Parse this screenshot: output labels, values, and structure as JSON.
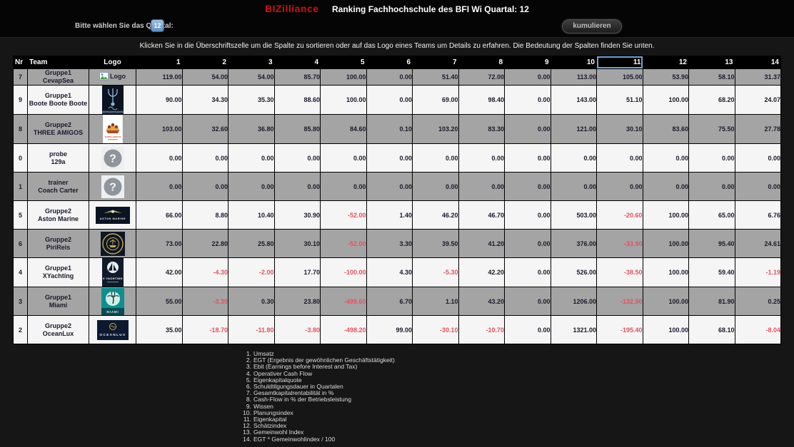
{
  "header": {
    "brand": "BIZilliance",
    "title": "Ranking Fachhochschule des BFI Wi Quartal: 12",
    "quartal_label": "Bitte wählen Sie das Quartal:",
    "quartal_value": "12",
    "kumulieren_button": "kumulieren"
  },
  "instruction": "Klicken Sie in die Überschriftszelle um die Spalte zu sortieren oder auf das Logo eines Teams um Details zu erfahren. Die Bedeutung der Spalten finden Sie unten.",
  "colors": {
    "brand_red": "#cc1111",
    "highlight_green": "#2f9e2c",
    "highlight_border_blue": "#6fa0d8",
    "negative_value_red": "#e8505e",
    "row_grey": "#a4a4a4",
    "row_light": "#f5f5f5",
    "badge_blue": "#5f8fc0"
  },
  "table": {
    "fixed_columns": [
      "Nr",
      "Team",
      "Logo"
    ],
    "value_columns": [
      "1",
      "2",
      "3",
      "4",
      "5",
      "6",
      "7",
      "8",
      "9",
      "10",
      "11",
      "12",
      "13",
      "14"
    ],
    "highlighted_column": "11",
    "rows": [
      {
        "nr": "7",
        "group": "Gruppe1",
        "name": "CevapSea",
        "logo": "broken-image",
        "logo_caption": "Logo",
        "values": [
          "119.00",
          "54.00",
          "54.00",
          "85.70",
          "100.00",
          "0.00",
          "51.40",
          "72.00",
          "0.00",
          "113.00",
          "105.00",
          "53.90",
          "58.10",
          "31.37"
        ]
      },
      {
        "nr": "9",
        "group": "Gruppe1",
        "name": "Boote Boote Boote",
        "logo": "poseidon-trident",
        "logo_caption": "BOOTE BOOTE BOOTE",
        "values": [
          "90.00",
          "34.30",
          "35.30",
          "88.60",
          "100.00",
          "0.00",
          "69.00",
          "98.40",
          "0.00",
          "143.00",
          "51.10",
          "100.00",
          "68.20",
          "24.07"
        ]
      },
      {
        "nr": "8",
        "group": "Gruppe2",
        "name": "THREE AMIGOS",
        "logo": "three-amigos-crown",
        "logo_caption": "THREE AMIGOS",
        "values": [
          "103.00",
          "32.60",
          "36.80",
          "85.80",
          "84.60",
          "0.10",
          "103.20",
          "83.30",
          "0.00",
          "121.00",
          "30.10",
          "83.60",
          "75.50",
          "27.78"
        ]
      },
      {
        "nr": "0",
        "group": "probe",
        "name": "129a",
        "logo": "question-placeholder",
        "logo_caption": "?",
        "values": [
          "0.00",
          "0.00",
          "0.00",
          "0.00",
          "0.00",
          "0.00",
          "0.00",
          "0.00",
          "0.00",
          "0.00",
          "0.00",
          "0.00",
          "0.00",
          "0.00"
        ]
      },
      {
        "nr": "1",
        "group": "trainer",
        "name": "Coach Carter",
        "logo": "question-placeholder",
        "logo_caption": "?",
        "values": [
          "0.00",
          "0.00",
          "0.00",
          "0.00",
          "0.00",
          "0.00",
          "0.00",
          "0.00",
          "0.00",
          "0.00",
          "0.00",
          "0.00",
          "0.00",
          "0.00"
        ]
      },
      {
        "nr": "5",
        "group": "Gruppe2",
        "name": "Aston Marine",
        "logo": "aston-marine-wings",
        "logo_caption": "ASTON MARINE",
        "values": [
          "66.00",
          "8.80",
          "10.40",
          "30.90",
          "-52.00",
          "1.40",
          "46.20",
          "46.70",
          "0.00",
          "503.00",
          "-20.60",
          "100.00",
          "65.00",
          "6.76"
        ]
      },
      {
        "nr": "6",
        "group": "Gruppe2",
        "name": "PiriReis",
        "logo": "pirireis-emblem",
        "logo_caption": "",
        "values": [
          "73.00",
          "22.80",
          "25.80",
          "30.10",
          "-52.00",
          "3.30",
          "39.50",
          "41.20",
          "0.00",
          "376.00",
          "-33.90",
          "100.00",
          "95.40",
          "24.61"
        ]
      },
      {
        "nr": "4",
        "group": "Gruppe1",
        "name": "XYachting",
        "logo": "xyachting-sail",
        "logo_caption": "X YACHTING",
        "values": [
          "42.00",
          "-4.30",
          "-2.00",
          "17.70",
          "-100.00",
          "4.30",
          "-5.30",
          "42.20",
          "0.00",
          "526.00",
          "-38.50",
          "100.00",
          "59.40",
          "-1.19"
        ]
      },
      {
        "nr": "3",
        "group": "Gruppe1",
        "name": "Miami",
        "logo": "miami-palm",
        "logo_caption": "MIAMI",
        "values": [
          "55.00",
          "-3.30",
          "0.30",
          "23.80",
          "-499.60",
          "6.70",
          "1.10",
          "43.20",
          "0.00",
          "1206.00",
          "-132.90",
          "100.00",
          "81.90",
          "0.25"
        ]
      },
      {
        "nr": "2",
        "group": "Gruppe2",
        "name": "OceanLux",
        "logo": "oceanlux-emblem",
        "logo_caption": "OCEANLUX",
        "values": [
          "35.00",
          "-18.70",
          "-11.80",
          "-3.80",
          "-498.20",
          "99.00",
          "-30.10",
          "-10.70",
          "0.00",
          "1321.00",
          "-195.40",
          "100.00",
          "68.10",
          "-8.04"
        ]
      }
    ]
  },
  "legend": [
    "Umsatz",
    "EGT (Ergebnis der gewöhnlichen Geschäftstätigkeit)",
    "Ebit (Earnings before Interest and Tax)",
    "Operativer Cash Flow",
    "Eigenkapitalquote",
    "Schuldtilgungsdauer in Quartalen",
    "Gesamtkapitalrentabilität in %",
    "Cash-Flow in % der Betriebsleistung",
    "Wissen",
    "Planungsindex",
    "Eigenkapital",
    "Schätzindex",
    "Gemeinwohl Index",
    "EGT * Gemeinwohlindex / 100"
  ]
}
